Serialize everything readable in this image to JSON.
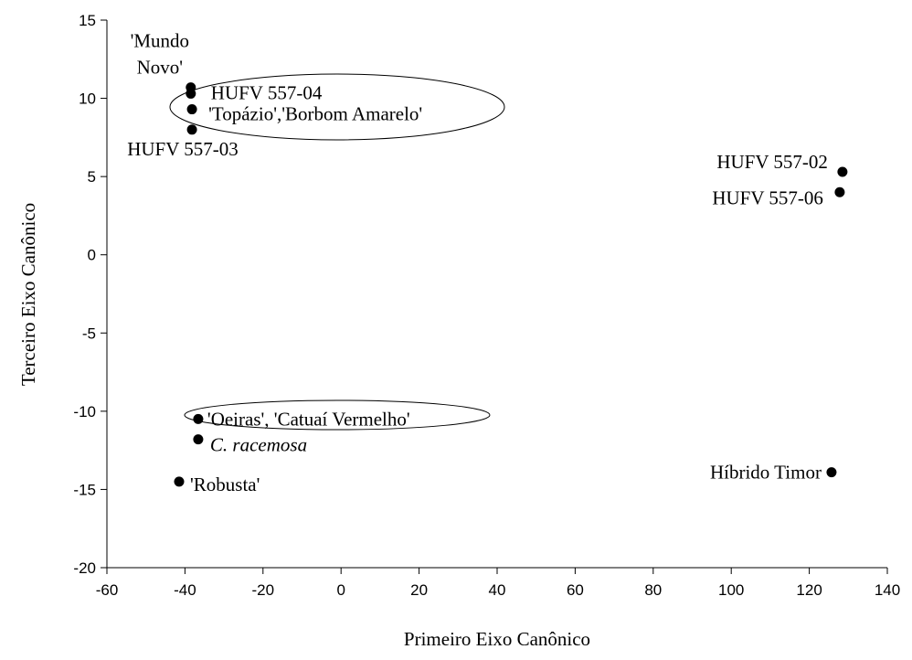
{
  "chart_data": {
    "type": "scatter",
    "xlabel": "Primeiro Eixo Canônico",
    "ylabel": "Terceiro Eixo Canônico",
    "xlim": [
      -60,
      140
    ],
    "xticks": [
      -60,
      -40,
      -20,
      0,
      20,
      40,
      60,
      80,
      100,
      120,
      140
    ],
    "ylim": [
      -20,
      15
    ],
    "yticks": [
      -20,
      -15,
      -10,
      -5,
      0,
      5,
      10,
      15
    ],
    "color": "#000000",
    "x": [
      -38.5,
      -38.5,
      -38.2,
      -38.2,
      128.5,
      127.8,
      -36.6,
      -36.6,
      -41.5,
      125.7
    ],
    "y": [
      10.7,
      10.3,
      9.3,
      8.0,
      5.3,
      4.0,
      -10.5,
      -11.8,
      -14.5,
      -13.9
    ],
    "labels": [
      [
        "'Mundo",
        "Novo'"
      ],
      [
        "HUFV 557-04"
      ],
      [
        "'Topázio','Borbom Amarelo'"
      ],
      [
        "HUFV 557-03"
      ],
      [
        "HUFV 557-02"
      ],
      [
        "HUFV 557-06"
      ],
      [
        "'Oeiras', 'Catuaí Vermelho'"
      ],
      [
        "C. racemosa"
      ],
      [
        "'Robusta'"
      ],
      [
        "Híbrido Timor"
      ]
    ],
    "label_italic": [
      false,
      false,
      false,
      false,
      false,
      false,
      false,
      true,
      false,
      false
    ]
  }
}
